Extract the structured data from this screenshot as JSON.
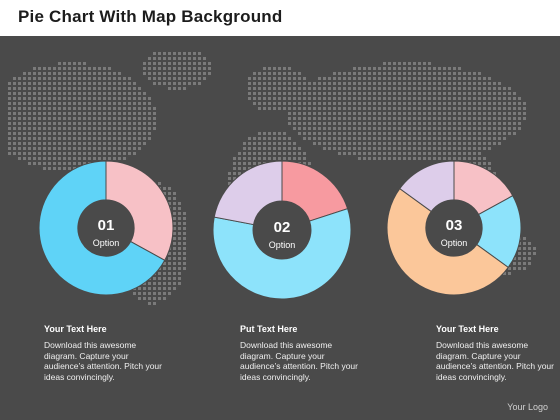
{
  "title": "Pie Chart With Map Background",
  "logo": "Your Logo",
  "colors": {
    "background": "#4a4a4a",
    "map_dots": "#7a7a7a",
    "pink": "#f7c1c6",
    "blue": "#5fd3f7",
    "red": "#f79aa0",
    "light_blue": "#8de3fb",
    "lavender": "#ddcdea",
    "peach": "#fbc79a",
    "hole": "#4a4a4a"
  },
  "chart_data": [
    {
      "type": "pie",
      "label": "01",
      "sublabel": "Option",
      "slices": [
        {
          "value": 33,
          "color": "#f7c1c6"
        },
        {
          "value": 67,
          "color": "#5fd3f7"
        }
      ]
    },
    {
      "type": "pie",
      "label": "02",
      "sublabel": "Option",
      "slices": [
        {
          "value": 20,
          "color": "#f79aa0"
        },
        {
          "value": 58,
          "color": "#8de3fb"
        },
        {
          "value": 22,
          "color": "#ddcdea"
        }
      ]
    },
    {
      "type": "pie",
      "label": "03",
      "sublabel": "Option",
      "slices": [
        {
          "value": 17,
          "color": "#f7c1c6"
        },
        {
          "value": 18,
          "color": "#8de3fb"
        },
        {
          "value": 50,
          "color": "#fbc79a"
        },
        {
          "value": 15,
          "color": "#ddcdea"
        }
      ]
    }
  ],
  "text_blocks": [
    {
      "heading": "Your Text Here",
      "body": "Download this awesome diagram. Capture your audience’s attention. Pitch your ideas convincingly."
    },
    {
      "heading": "Put Text Here",
      "body": "Download this awesome diagram. Capture your audience’s attention. Pitch your ideas convincingly."
    },
    {
      "heading": "Your Text Here",
      "body": "Download this awesome diagram. Capture your audience’s attention. Pitch your ideas convincingly."
    }
  ]
}
